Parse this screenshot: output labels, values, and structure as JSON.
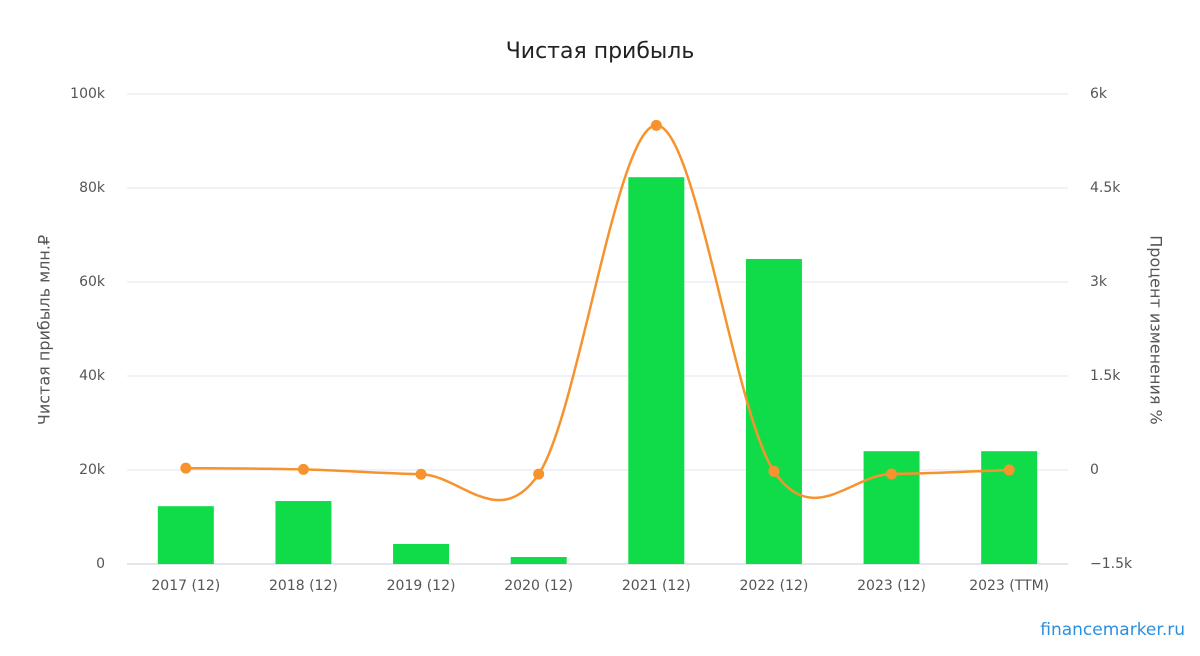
{
  "chart_data": {
    "type": "bar_line",
    "title": "Чистая прибыль",
    "y_label": "Чистая прибыль млн.₽",
    "y2_label": "Процент изменения %",
    "source": "financemarker.ru",
    "categories": [
      "2017 (12)",
      "2018 (12)",
      "2019 (12)",
      "2020 (12)",
      "2021 (12)",
      "2022 (12)",
      "2023 (12)",
      "2023 (TTM)"
    ],
    "series": [
      {
        "name": "Чистая прибыль",
        "type": "bar",
        "color": "#10dc4a",
        "values": [
          12300,
          13400,
          4260,
          1490,
          82300,
          64900,
          24000,
          24000
        ]
      },
      {
        "name": "Процент изменения",
        "type": "line",
        "axis": "y2",
        "color": "#f7932e",
        "values": [
          30,
          10,
          -68,
          -65,
          5500,
          -21,
          -63,
          0
        ]
      }
    ],
    "ylim": [
      0,
      100000
    ],
    "yticks": [
      0,
      {
        "value": 20000,
        "label": "20k"
      },
      {
        "value": 40000,
        "label": "40k"
      },
      {
        "value": 60000,
        "label": "60k"
      },
      {
        "value": 80000,
        "label": "80k"
      },
      {
        "value": 100000,
        "label": "100k"
      }
    ],
    "y2lim": [
      -1500,
      6000
    ],
    "y2ticks": [
      {
        "value": -1500,
        "label": "−1.5k"
      },
      0,
      {
        "value": 1500,
        "label": "1.5k"
      },
      {
        "value": 3000,
        "label": "3k"
      },
      {
        "value": 4500,
        "label": "4.5k"
      },
      {
        "value": 6000,
        "label": "6k"
      }
    ],
    "grid": true
  }
}
